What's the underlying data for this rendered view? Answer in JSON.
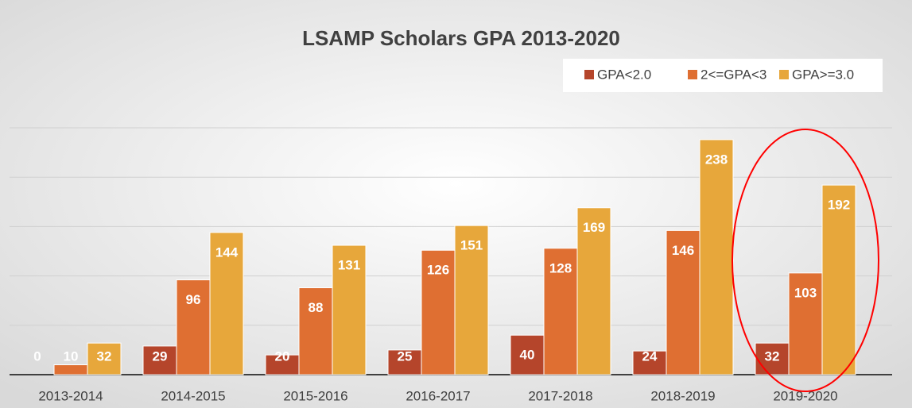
{
  "chart_data": {
    "type": "bar",
    "title": "LSAMP Scholars GPA 2013-2020",
    "categories": [
      "2013-2014",
      "2014-2015",
      "2015-2016",
      "2016-2017",
      "2017-2018",
      "2018-2019",
      "2019-2020"
    ],
    "series": [
      {
        "name": "GPA<2.0",
        "color": "#b5452b",
        "values": [
          0,
          29,
          20,
          25,
          40,
          24,
          32
        ]
      },
      {
        "name": "2<=GPA<3",
        "color": "#df6f32",
        "values": [
          10,
          96,
          88,
          126,
          128,
          146,
          103
        ]
      },
      {
        "name": "GPA>=3.0",
        "color": "#e7a73b",
        "values": [
          32,
          144,
          131,
          151,
          169,
          238,
          192
        ]
      }
    ],
    "ylim": [
      0,
      250
    ],
    "yticks": [
      0,
      50,
      100,
      150,
      200,
      250
    ],
    "grid": true,
    "legend": "top-right"
  }
}
